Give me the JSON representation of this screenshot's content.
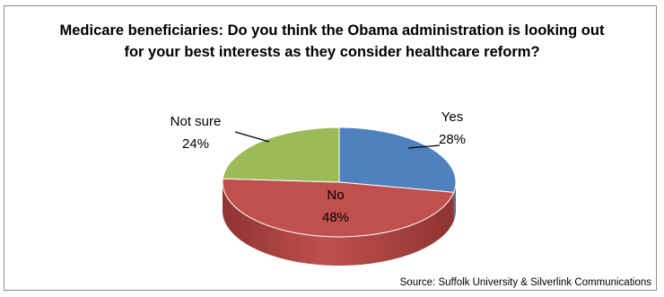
{
  "chart_data": {
    "type": "pie",
    "title": "Medicare beneficiaries:  Do you think the Obama administration is looking out for your best interests as they consider healthcare reform?",
    "slices": [
      {
        "label": "Yes",
        "value": 28,
        "value_label": "28%",
        "color": "#4f81bd",
        "side": "#3a6291"
      },
      {
        "label": "No",
        "value": 48,
        "value_label": "48%",
        "color": "#c0504d",
        "side": "#8e3431"
      },
      {
        "label": "Not sure",
        "value": 24,
        "value_label": "24%",
        "color": "#9bbb59",
        "side": "#728c3f"
      }
    ],
    "note": "Source:  Suffolk University & Silverlink Communications"
  }
}
